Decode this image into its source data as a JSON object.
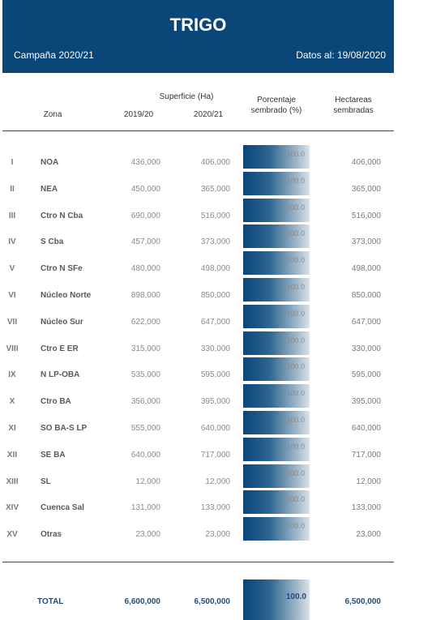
{
  "header": {
    "title": "TRIGO",
    "campaign": "Campaña 2020/21",
    "date": "Datos al: 19/08/2020"
  },
  "columns": {
    "zona": "Zona",
    "superficie": "Superficie (Ha)",
    "y1": "2019/20",
    "y2": "2020/21",
    "porcentaje": "Porcentaje sembrado (%)",
    "hectareas": "Hectareas sembradas"
  },
  "rows": [
    {
      "num": "I",
      "zona": "NOA",
      "v19": "436,000",
      "v20": "406,000",
      "pct": "100.0",
      "pct_value": 100,
      "ha": "406,000"
    },
    {
      "num": "II",
      "zona": "NEA",
      "v19": "450,000",
      "v20": "365,000",
      "pct": "100.0",
      "pct_value": 100,
      "ha": "365,000"
    },
    {
      "num": "III",
      "zona": "Ctro N Cba",
      "v19": "690,000",
      "v20": "516,000",
      "pct": "100.0",
      "pct_value": 100,
      "ha": "516,000"
    },
    {
      "num": "IV",
      "zona": "S Cba",
      "v19": "457,000",
      "v20": "373,000",
      "pct": "100.0",
      "pct_value": 100,
      "ha": "373,000"
    },
    {
      "num": "V",
      "zona": "Ctro N SFe",
      "v19": "480,000",
      "v20": "498,000",
      "pct": "100.0",
      "pct_value": 100,
      "ha": "498,000"
    },
    {
      "num": "VI",
      "zona": "Núcleo Norte",
      "v19": "898,000",
      "v20": "850,000",
      "pct": "100.0",
      "pct_value": 100,
      "ha": "850,000"
    },
    {
      "num": "VII",
      "zona": "Núcleo Sur",
      "v19": "622,000",
      "v20": "647,000",
      "pct": "100.0",
      "pct_value": 100,
      "ha": "647,000"
    },
    {
      "num": "VIII",
      "zona": "Ctro E ER",
      "v19": "315,000",
      "v20": "330,000",
      "pct": "100.0",
      "pct_value": 100,
      "ha": "330,000"
    },
    {
      "num": "IX",
      "zona": "N LP-OBA",
      "v19": "535,000",
      "v20": "595,000",
      "pct": "100.0",
      "pct_value": 100,
      "ha": "595,000"
    },
    {
      "num": "X",
      "zona": "Ctro BA",
      "v19": "356,000",
      "v20": "395,000",
      "pct": "100.0",
      "pct_value": 100,
      "ha": "395,000"
    },
    {
      "num": "XI",
      "zona": "SO BA-S LP",
      "v19": "555,000",
      "v20": "640,000",
      "pct": "100.0",
      "pct_value": 100,
      "ha": "640,000"
    },
    {
      "num": "XII",
      "zona": "SE BA",
      "v19": "640,000",
      "v20": "717,000",
      "pct": "100.0",
      "pct_value": 100,
      "ha": "717,000"
    },
    {
      "num": "XIII",
      "zona": "SL",
      "v19": "12,000",
      "v20": "12,000",
      "pct": "100.0",
      "pct_value": 100,
      "ha": "12,000"
    },
    {
      "num": "XIV",
      "zona": "Cuenca Sal",
      "v19": "131,000",
      "v20": "133,000",
      "pct": "100.0",
      "pct_value": 100,
      "ha": "133,000"
    },
    {
      "num": "XV",
      "zona": "Otras",
      "v19": "23,000",
      "v20": "23,000",
      "pct": "100.0",
      "pct_value": 100,
      "ha": "23,000"
    }
  ],
  "total": {
    "label": "TOTAL",
    "v19": "6,600,000",
    "v20": "6,500,000",
    "pct": "100.0",
    "pct_value": 100,
    "ha": "6,500,000"
  },
  "colors": {
    "header_bg": "#0a4678",
    "accent": "#1f4e79"
  }
}
